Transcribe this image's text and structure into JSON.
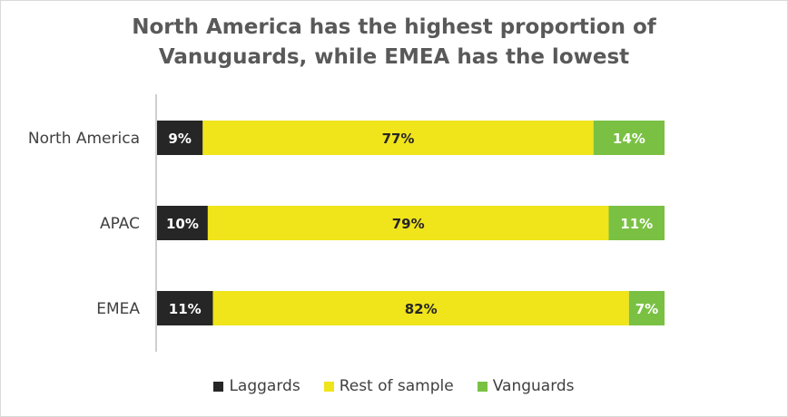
{
  "chart_data": {
    "type": "bar",
    "orientation": "horizontal-stacked",
    "title": "North America has the highest proportion of Vanuguards, while EMEA has the lowest",
    "title_lines": [
      "North America has the highest proportion of",
      "Vanuguards, while EMEA has the lowest"
    ],
    "categories": [
      "North America",
      "APAC",
      "EMEA"
    ],
    "series": [
      {
        "name": "Laggards",
        "color": "#262626",
        "label_color": "#ffffff",
        "values": [
          9,
          10,
          11
        ],
        "labels": [
          "9%",
          "10%",
          "11%"
        ]
      },
      {
        "name": "Rest of sample",
        "color": "#f0e41b",
        "label_color": "#262626",
        "values": [
          77,
          79,
          82
        ],
        "labels": [
          "77%",
          "79%",
          "82%"
        ]
      },
      {
        "name": "Vanguards",
        "color": "#7ac143",
        "label_color": "#ffffff",
        "values": [
          14,
          11,
          7
        ],
        "labels": [
          "14%",
          "11%",
          "7%"
        ]
      }
    ],
    "xlim": [
      0,
      100
    ],
    "grid": false,
    "legend_position": "bottom"
  }
}
